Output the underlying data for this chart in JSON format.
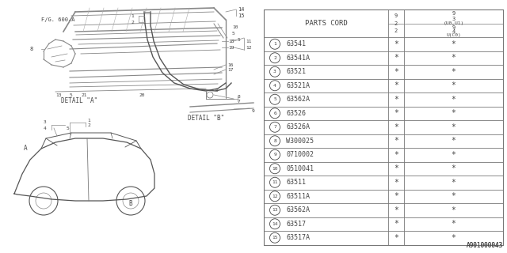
{
  "fig_ref": "F/G. 600-A",
  "detail_a_label": "DETAIL \"A\"",
  "detail_b_label": "DETAIL \"B\"",
  "footer": "A901000043",
  "parts": [
    [
      "1",
      "63541"
    ],
    [
      "2",
      "63541A"
    ],
    [
      "3",
      "63521"
    ],
    [
      "4",
      "63521A"
    ],
    [
      "5",
      "63562A"
    ],
    [
      "6",
      "63526"
    ],
    [
      "7",
      "63526A"
    ],
    [
      "8",
      "W300025"
    ],
    [
      "9",
      "0710002"
    ],
    [
      "10",
      "0510041"
    ],
    [
      "11",
      "63511"
    ],
    [
      "12",
      "63511A"
    ],
    [
      "13",
      "63562A"
    ],
    [
      "14",
      "63517"
    ],
    [
      "15",
      "63517A"
    ]
  ],
  "bg_color": "#ffffff",
  "lc": "#777777",
  "tc": "#444444",
  "diagram_lc": "#888888"
}
